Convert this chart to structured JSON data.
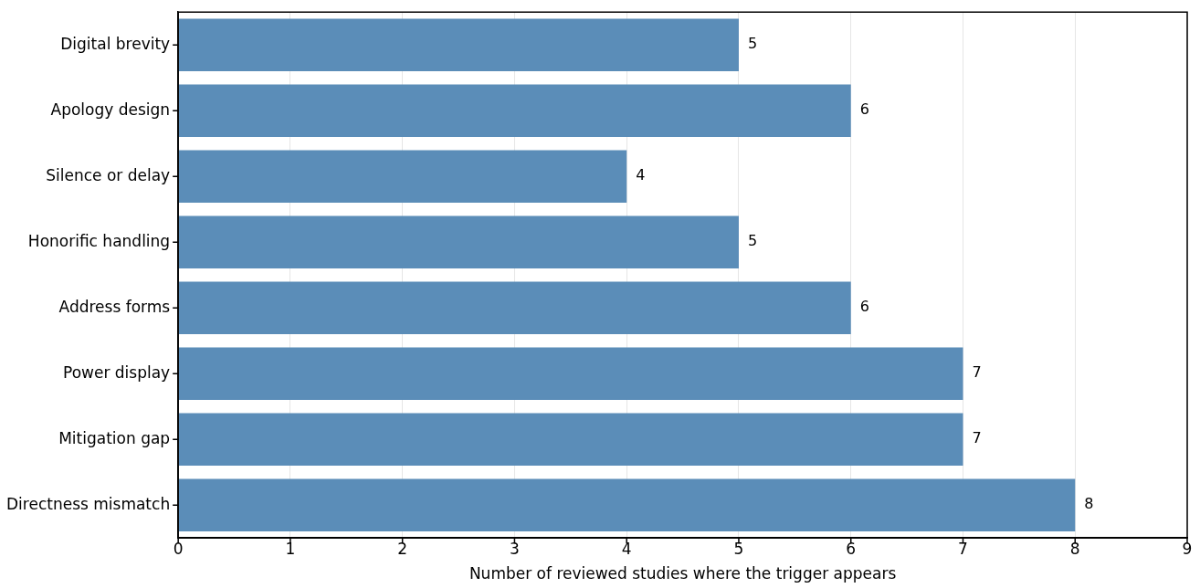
{
  "chart_data": {
    "type": "bar",
    "orientation": "horizontal",
    "xlabel": "Number of reviewed studies where the trigger appears",
    "categories": [
      "Digital brevity",
      "Apology design",
      "Silence or delay",
      "Honorific handling",
      "Address forms",
      "Power display",
      "Mitigation gap",
      "Directness mismatch"
    ],
    "values": [
      5,
      6,
      4,
      5,
      6,
      7,
      7,
      8
    ],
    "color": "#5b8db8",
    "xlim": [
      0,
      9
    ],
    "xticks": [
      0,
      1,
      2,
      3,
      4,
      5,
      6,
      7,
      8,
      9
    ],
    "grid": "x",
    "data_labels": true
  }
}
